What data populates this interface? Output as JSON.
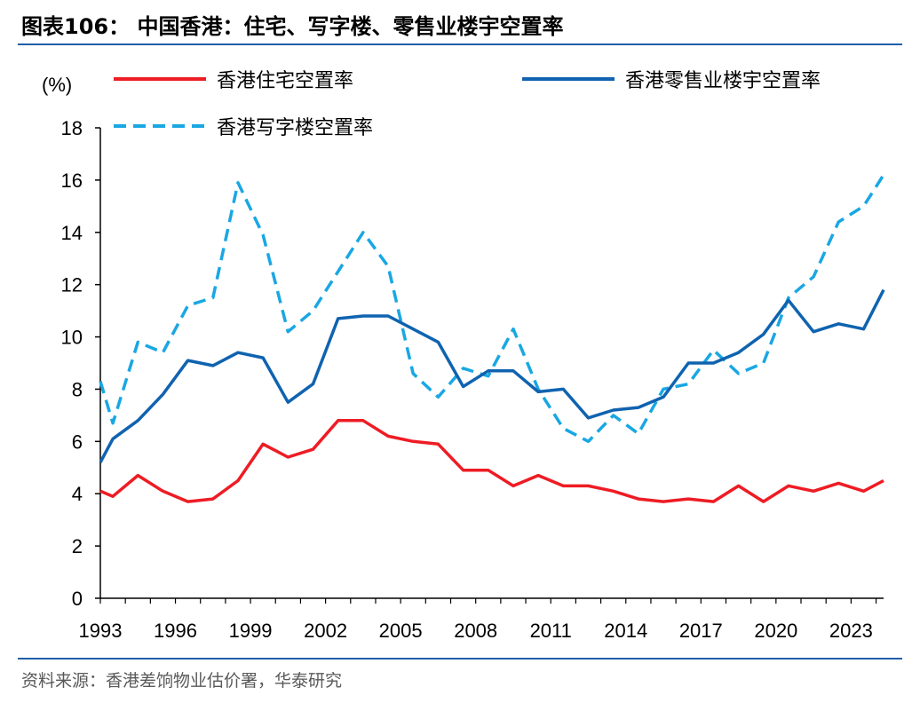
{
  "header": {
    "title": "图表106：  中国香港：住宅、写字楼、零售业楼宇空置率"
  },
  "footer": {
    "source": "资料来源：香港差饷物业估价署，华泰研究"
  },
  "chart_data": {
    "type": "line",
    "title": "中国香港：住宅、写字楼、零售业楼宇空置率",
    "ylabel": "(%)",
    "xlabel": "",
    "ylim": [
      0,
      18
    ],
    "yticks": [
      0,
      2,
      4,
      6,
      8,
      10,
      12,
      14,
      16,
      18
    ],
    "xlim": [
      1993,
      2024.3
    ],
    "xticks": [
      1993,
      1996,
      1999,
      2002,
      2005,
      2008,
      2011,
      2014,
      2017,
      2020,
      2023
    ],
    "grid": false,
    "legend": "top",
    "x": [
      1993,
      1993.5,
      1994.5,
      1995.5,
      1996.5,
      1997.5,
      1998.5,
      1999.5,
      2000.5,
      2001.5,
      2002.5,
      2003.5,
      2004.5,
      2005.5,
      2006.5,
      2007.5,
      2008.5,
      2009.5,
      2010.5,
      2011.5,
      2012.5,
      2013.5,
      2014.5,
      2015.5,
      2016.5,
      2017.5,
      2018.5,
      2019.5,
      2020.5,
      2021.5,
      2022.5,
      2023.5,
      2024.3
    ],
    "series": [
      {
        "name": "香港住宅空置率",
        "color": "#ee1c24",
        "style": "solid",
        "values": [
          4.1,
          3.9,
          4.7,
          4.1,
          3.7,
          3.8,
          4.5,
          5.9,
          5.4,
          5.7,
          6.8,
          6.8,
          6.2,
          6.0,
          5.9,
          4.9,
          4.9,
          4.3,
          4.7,
          4.3,
          4.3,
          4.1,
          3.8,
          3.7,
          3.8,
          3.7,
          4.3,
          3.7,
          4.3,
          4.1,
          4.4,
          4.1,
          4.5
        ]
      },
      {
        "name": "香港零售业楼宇空置率",
        "color": "#0f63b0",
        "style": "solid",
        "values": [
          5.2,
          6.1,
          6.8,
          7.8,
          9.1,
          8.9,
          9.4,
          9.2,
          7.5,
          8.2,
          10.7,
          10.8,
          10.8,
          10.3,
          9.8,
          8.1,
          8.7,
          8.7,
          7.9,
          8.0,
          6.9,
          7.2,
          7.3,
          7.7,
          9.0,
          9.0,
          9.4,
          10.1,
          11.4,
          10.2,
          10.5,
          10.3,
          11.8
        ]
      },
      {
        "name": "香港写字楼空置率",
        "color": "#19a7e3",
        "style": "dashed",
        "values": [
          8.3,
          6.7,
          9.8,
          9.4,
          11.2,
          11.5,
          15.9,
          13.9,
          10.2,
          11.0,
          12.5,
          14.0,
          12.7,
          8.6,
          7.7,
          8.8,
          8.5,
          10.3,
          8.0,
          6.5,
          6.0,
          7.0,
          6.3,
          8.0,
          8.2,
          9.5,
          8.6,
          9.0,
          11.5,
          12.3,
          14.4,
          15.0,
          16.2
        ]
      }
    ]
  }
}
